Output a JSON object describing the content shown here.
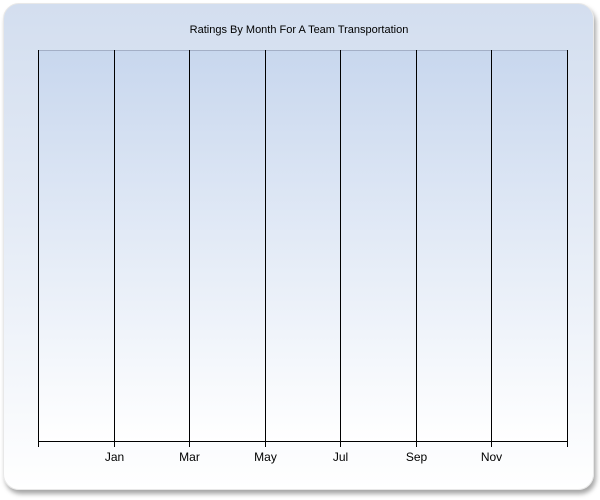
{
  "chart_data": {
    "type": "bar",
    "title": "Ratings By Month For A Team Transportation",
    "x_tick_labels": [
      "",
      "Jan",
      "Mar",
      "May",
      "Jul",
      "Sep",
      "Nov",
      ""
    ],
    "series": [],
    "xlabel": "",
    "ylabel": "",
    "grid": "vertical",
    "colors": {
      "panel_top": "#d3deef",
      "plot_top": "#c8d7ee",
      "background_bottom": "#ffffff",
      "grid": "#000000"
    }
  }
}
